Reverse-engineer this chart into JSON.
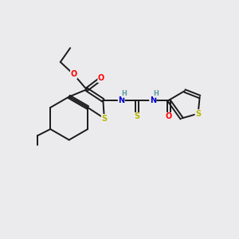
{
  "background_color": "#ebebed",
  "bond_color": "#1a1a1a",
  "atom_colors": {
    "S": "#b8b800",
    "O": "#ff0000",
    "N": "#0000cc",
    "H": "#5f9ea0",
    "C": "#1a1a1a"
  },
  "figure_size": [
    3.0,
    3.0
  ],
  "dpi": 100
}
